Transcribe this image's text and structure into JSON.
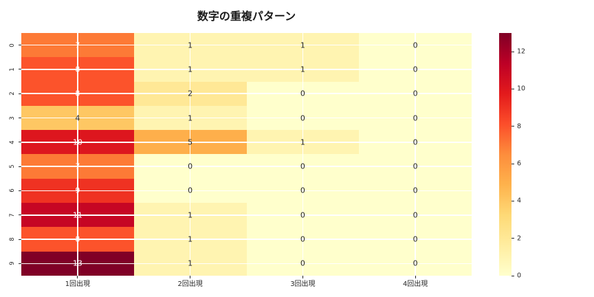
{
  "title": "数字の重複パターン",
  "chart_data": {
    "type": "heatmap",
    "title": "数字の重複パターン",
    "rows": [
      "0",
      "1",
      "2",
      "3",
      "4",
      "5",
      "6",
      "7",
      "8",
      "9"
    ],
    "columns": [
      "1回出現",
      "2回出現",
      "3回出現",
      "4回出現"
    ],
    "values": [
      [
        7,
        1,
        1,
        0
      ],
      [
        8,
        1,
        1,
        0
      ],
      [
        8,
        2,
        0,
        0
      ],
      [
        4,
        1,
        0,
        0
      ],
      [
        10,
        5,
        1,
        0
      ],
      [
        7,
        0,
        0,
        0
      ],
      [
        9,
        0,
        0,
        0
      ],
      [
        11,
        1,
        0,
        0
      ],
      [
        8,
        1,
        0,
        0
      ],
      [
        13,
        1,
        0,
        0
      ]
    ],
    "vmin": 0,
    "vmax": 13,
    "annotated": true,
    "colormap": {
      "name": "YlOrRd",
      "stops": [
        "#ffffcc",
        "#ffeda0",
        "#fed976",
        "#feb24c",
        "#fd8d3c",
        "#fc4e2a",
        "#e31a1c",
        "#bd0026",
        "#800026"
      ]
    },
    "grid_color": "#ffffff",
    "annotation_colors": {
      "on_light": "#262626",
      "on_dark": "#ffffff"
    },
    "colorbar_ticks": [
      "0",
      "2",
      "4",
      "6",
      "8",
      "10",
      "12"
    ],
    "legend_position": "right-colorbar",
    "grid": true
  }
}
